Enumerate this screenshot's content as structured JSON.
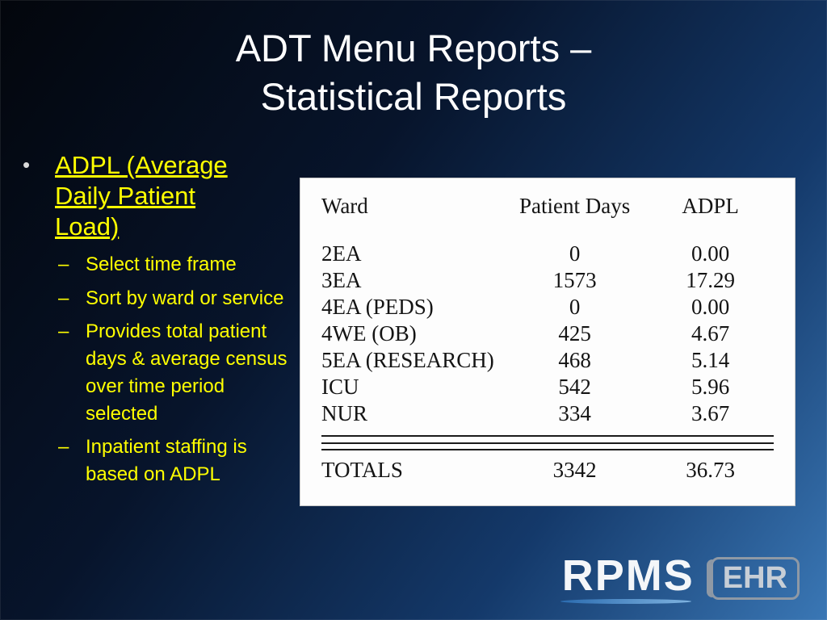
{
  "slide": {
    "title": {
      "line1": "ADT Menu Reports –",
      "line2": "Statistical Reports"
    }
  },
  "content": {
    "main_bullet": {
      "marker": "•",
      "label": "ADPL (Average Daily Patient Load)"
    },
    "sub_bullets": {
      "marker": "–",
      "items": [
        "Select time frame",
        "Sort by ward or service",
        "Provides total patient days & average census over time period selected",
        "Inpatient staffing is based on ADPL"
      ]
    }
  },
  "table": {
    "headers": [
      "Ward",
      "Patient Days",
      "ADPL"
    ],
    "rows": [
      [
        "2EA",
        "0",
        "0.00"
      ],
      [
        "3EA",
        "1573",
        "17.29"
      ],
      [
        "4EA (PEDS)",
        "0",
        "0.00"
      ],
      [
        "4WE (OB)",
        "425",
        "4.67"
      ],
      [
        "5EA (RESEARCH)",
        "468",
        "5.14"
      ],
      [
        "ICU",
        "542",
        "5.96"
      ],
      [
        "NUR",
        "334",
        "3.67"
      ]
    ],
    "totals": [
      "TOTALS",
      "3342",
      "36.73"
    ]
  },
  "logo": {
    "rpms": "RPMS",
    "ehr": "EHR"
  },
  "colors": {
    "title_text": "#ffffff",
    "bullet_text": "#ffff00",
    "table_background": "#ffffff",
    "background_dark": "#03060c",
    "background_light": "#3a77b5"
  }
}
